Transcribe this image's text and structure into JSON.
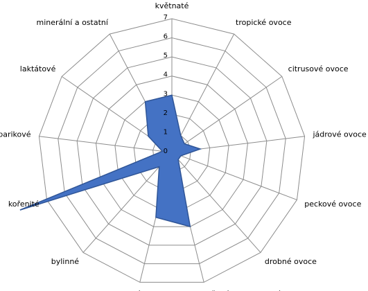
{
  "chart_data": {
    "type": "radar",
    "categories": [
      "květnaté",
      "tropické ovoce",
      "citrusové ovoce",
      "jádrové ovoce",
      "peckové ovoce",
      "drobné ovoce",
      "sušené a kandované ovoce",
      "karamelizované",
      "bylinné",
      "kořenité",
      "barikové",
      "laktátové",
      "minerální a ostatní"
    ],
    "values": [
      3,
      1,
      0.8,
      1.5,
      0.5,
      0.5,
      4,
      3.5,
      1,
      8.5,
      0.5,
      1.5,
      3
    ],
    "color": "#4472c4",
    "ylim": [
      0,
      7
    ],
    "yticks": [
      0,
      1,
      2,
      3,
      4,
      5,
      6,
      7
    ],
    "grid": true
  }
}
